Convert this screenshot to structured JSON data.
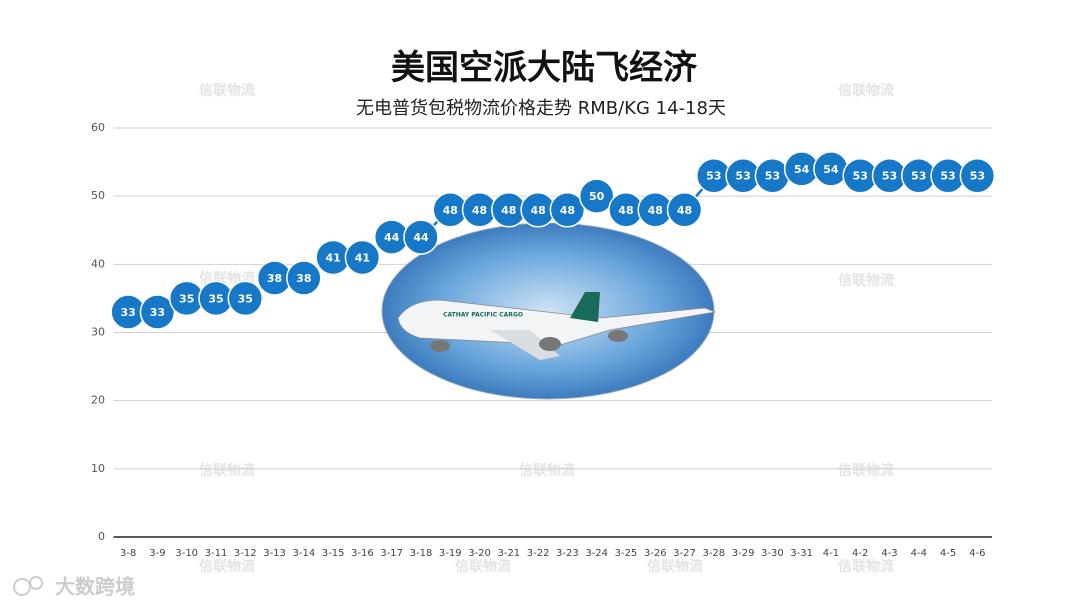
{
  "chart_data": {
    "type": "line",
    "title": "美国空派大陆飞经济",
    "subtitle": "无电普货包税物流价格走势 RMB/KG  14-18天",
    "categories": [
      "3-8",
      "3-9",
      "3-10",
      "3-11",
      "3-12",
      "3-13",
      "3-14",
      "3-15",
      "3-16",
      "3-17",
      "3-18",
      "3-19",
      "3-20",
      "3-21",
      "3-22",
      "3-23",
      "3-24",
      "3-25",
      "3-26",
      "3-27",
      "3-28",
      "3-29",
      "3-30",
      "3-31",
      "4-1",
      "4-2",
      "4-3",
      "4-4",
      "4-5",
      "4-6"
    ],
    "values": [
      33,
      33,
      35,
      35,
      35,
      38,
      38,
      41,
      41,
      44,
      44,
      48,
      48,
      48,
      48,
      48,
      50,
      48,
      48,
      48,
      53,
      53,
      53,
      54,
      54,
      53,
      53,
      53,
      53,
      53
    ],
    "color": "#1878c8",
    "ylim": [
      0,
      60
    ],
    "yticks": [
      0,
      10,
      20,
      30,
      40,
      50,
      60
    ],
    "grid": true
  },
  "watermark": "信联物流",
  "image_text": "CATHAY PACIFIC CARGO",
  "logo": "大数跨境"
}
